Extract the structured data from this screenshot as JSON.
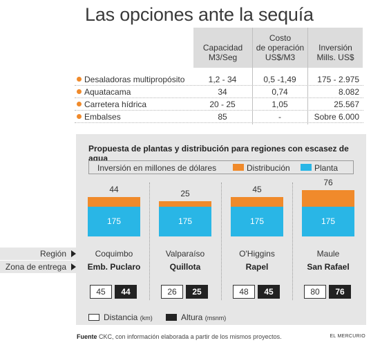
{
  "title": "Las opciones ante la sequía",
  "table": {
    "headers": [
      "Capacidad\nM3/Seg",
      "Costo\nde operación\nUS$/M3",
      "Inversión\nMills. US$"
    ],
    "rows": [
      {
        "name": "Desaladoras multipropósito",
        "capacidad": "1,2 - 34",
        "costo": "0,5 -1,49",
        "inversion": "175 - 2.975"
      },
      {
        "name": "Aquatacama",
        "capacidad": "34",
        "costo": "0,74",
        "inversion": "8.082"
      },
      {
        "name": "Carretera hídrica",
        "capacidad": "20 - 25",
        "costo": "1,05",
        "inversion": "25.567"
      },
      {
        "name": "Embalses",
        "capacidad": "85",
        "costo": "-",
        "inversion": "Sobre 6.000"
      }
    ],
    "bullet_color": "#f08a2b"
  },
  "chart_data": {
    "type": "bar",
    "title": "Propuesta  de plantas y distribución para regiones con escasez de agua",
    "legend_title": "Inversión en millones de dólares",
    "categories": [
      "Coquimbo",
      "Valparaíso",
      "O'Higgins",
      "Maule"
    ],
    "series": [
      {
        "name": "Distribución",
        "color": "#f08a2b",
        "values": [
          44,
          25,
          45,
          76
        ]
      },
      {
        "name": "Planta",
        "color": "#29b6e6",
        "values": [
          175,
          175,
          175,
          175
        ]
      }
    ],
    "stacked": true
  },
  "labels": {
    "region": "Región",
    "zone": "Zona de entrega",
    "distance_legend": "Distancia",
    "distance_unit": "(km)",
    "height_legend": "Altura",
    "height_unit": "(msnm)"
  },
  "zones": [
    "Emb. Puclaro",
    "Quillota",
    "Rapel",
    "San Rafael"
  ],
  "distances": [
    "45",
    "26",
    "48",
    "80"
  ],
  "heights": [
    "44",
    "25",
    "45",
    "76"
  ],
  "source_label": "Fuente",
  "source_text": " CKC, con información elaborada a partir de los mismos proyectos.",
  "credit": "EL MERCURIO"
}
